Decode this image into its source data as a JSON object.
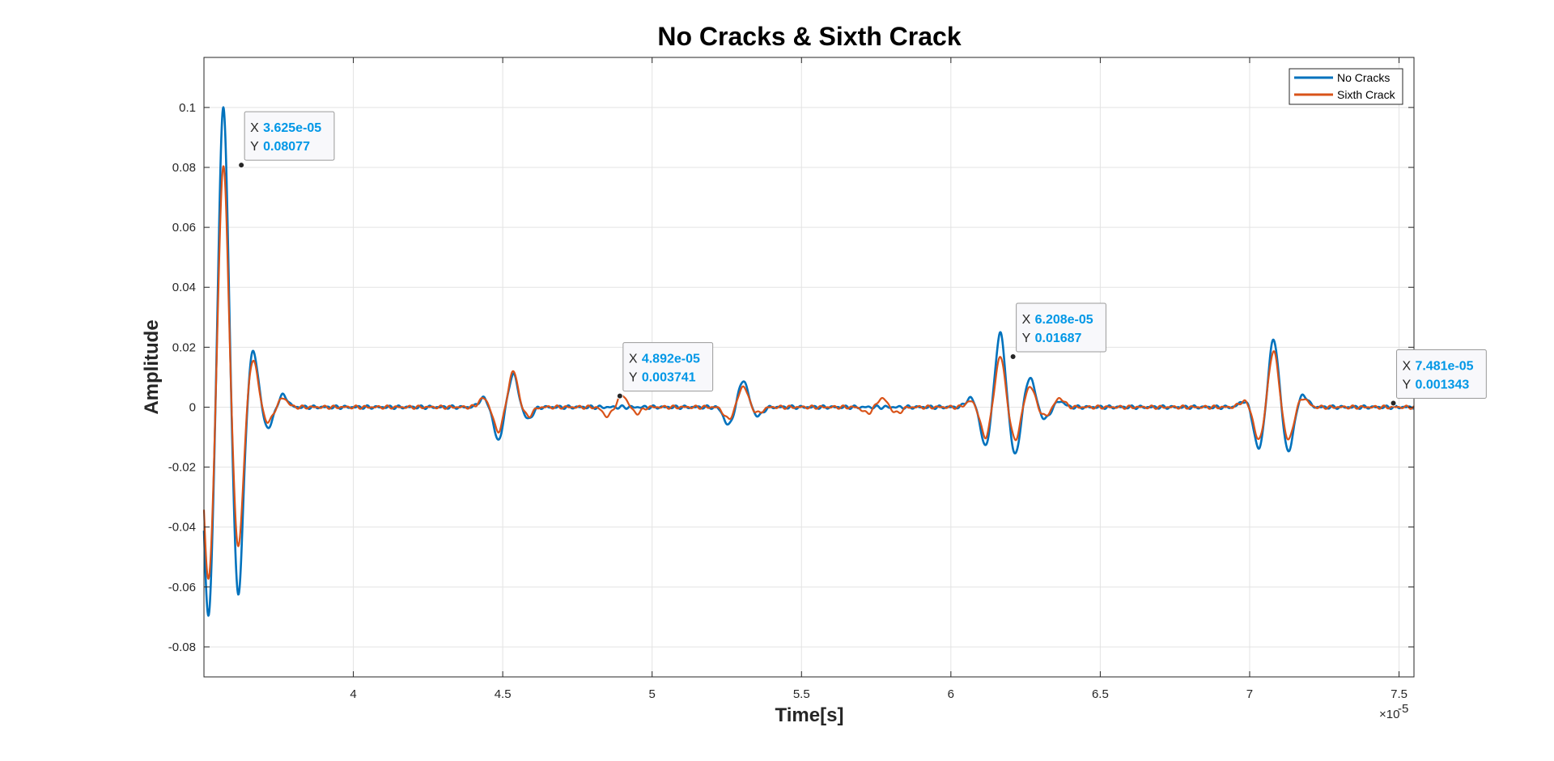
{
  "chart_data": {
    "type": "line",
    "title": "No Cracks & Sixth Crack",
    "xlabel": "Time[s]",
    "ylabel": "Amplitude",
    "x_exponent_label": "×10",
    "x_exponent": "-5",
    "xlim": [
      3.5e-05,
      7.55e-05
    ],
    "ylim": [
      -0.09,
      0.1167
    ],
    "x_ticks": [
      4e-05,
      4.5e-05,
      5e-05,
      5.5e-05,
      6e-05,
      6.5e-05,
      7e-05,
      7.5e-05
    ],
    "x_tick_labels": [
      "4",
      "4.5",
      "5",
      "5.5",
      "6",
      "6.5",
      "7",
      "7.5"
    ],
    "y_ticks": [
      -0.08,
      -0.06,
      -0.04,
      -0.02,
      0,
      0.02,
      0.04,
      0.06,
      0.08,
      0.1
    ],
    "y_tick_labels": [
      "-0.08",
      "-0.06",
      "-0.04",
      "-0.02",
      "0",
      "0.02",
      "0.04",
      "0.06",
      "0.08",
      "0.1"
    ],
    "grid": true,
    "legend_position": "top-right",
    "series": [
      {
        "name": "No Cracks",
        "color": "#0072bd",
        "bursts": [
          {
            "center": 3.615e-05,
            "amps": [
              0.014,
              -0.07,
              0.101,
              -0.063,
              0.019,
              -0.007,
              0.004
            ]
          },
          {
            "center": 4.51e-05,
            "amps": [
              0.003,
              -0.011,
              0.011,
              -0.004
            ]
          },
          {
            "center": 5.305e-05,
            "amps": [
              -0.006,
              0.009,
              -0.003
            ]
          },
          {
            "center": 6.215e-05,
            "amps": [
              0.003,
              -0.013,
              0.025,
              -0.016,
              0.01,
              -0.004,
              0.002
            ]
          },
          {
            "center": 7.08e-05,
            "amps": [
              0.002,
              -0.014,
              0.023,
              -0.015,
              0.004
            ]
          }
        ]
      },
      {
        "name": "Sixth Crack",
        "color": "#d95319",
        "bursts": [
          {
            "center": 3.615e-05,
            "amps": [
              0.012,
              -0.058,
              0.081,
              -0.047,
              0.016,
              -0.005,
              0.003
            ]
          },
          {
            "center": 4.51e-05,
            "amps": [
              0.003,
              -0.008,
              0.012,
              -0.003
            ]
          },
          {
            "center": 4.9e-05,
            "amps": [
              -0.003,
              0.004,
              -0.002
            ]
          },
          {
            "center": 5.305e-05,
            "amps": [
              -0.004,
              0.007,
              -0.002
            ]
          },
          {
            "center": 5.77e-05,
            "amps": [
              -0.002,
              0.003,
              -0.002
            ]
          },
          {
            "center": 6.215e-05,
            "amps": [
              0.002,
              -0.01,
              0.017,
              -0.011,
              0.007,
              -0.003,
              0.003
            ]
          },
          {
            "center": 7.08e-05,
            "amps": [
              0.002,
              -0.011,
              0.019,
              -0.011,
              0.003
            ]
          }
        ]
      }
    ],
    "datatips": [
      {
        "x_label": "X",
        "x_value": "3.625e-05",
        "y_label": "Y",
        "y_value": "0.08077",
        "x": 3.625e-05,
        "y": 0.08077
      },
      {
        "x_label": "X",
        "x_value": "4.892e-05",
        "y_label": "Y",
        "y_value": "0.003741",
        "x": 4.892e-05,
        "y": 0.003741
      },
      {
        "x_label": "X",
        "x_value": "6.208e-05",
        "y_label": "Y",
        "y_value": "0.01687",
        "x": 6.208e-05,
        "y": 0.01687
      },
      {
        "x_label": "X",
        "x_value": "7.481e-05",
        "y_label": "Y",
        "y_value": "0.001343",
        "x": 7.481e-05,
        "y": 0.001343
      }
    ]
  }
}
